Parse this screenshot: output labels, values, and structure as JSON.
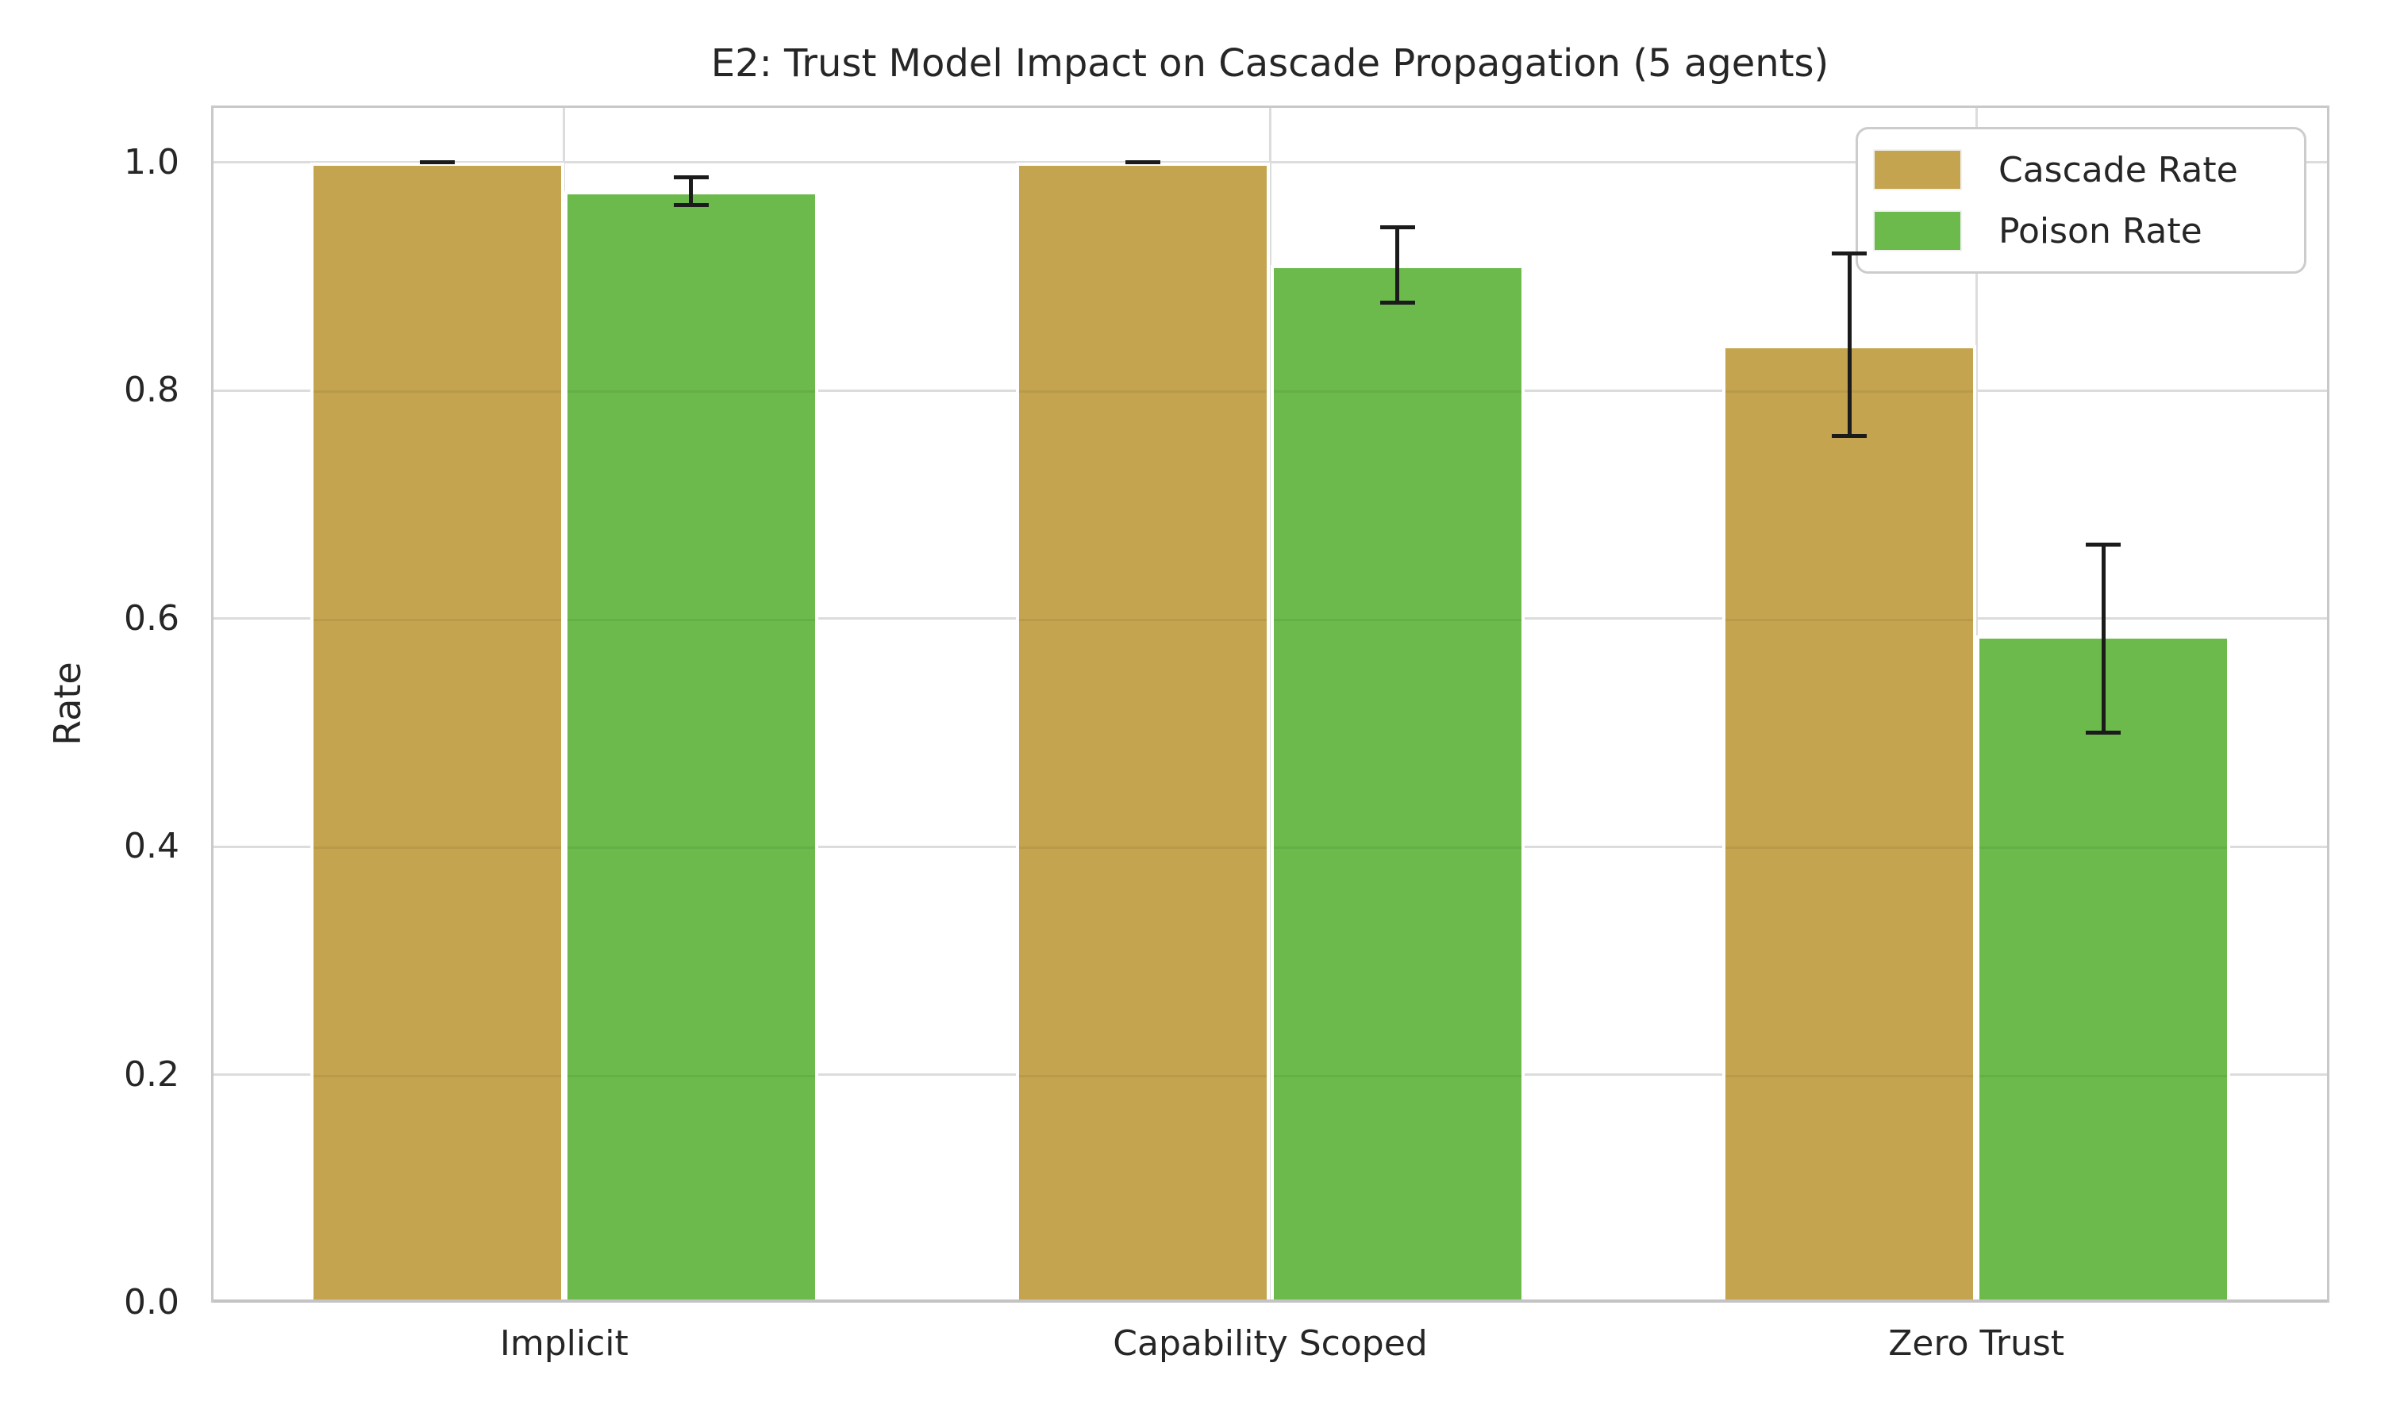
{
  "chart_data": {
    "type": "bar",
    "title": "E2: Trust Model Impact on Cascade Propagation (5 agents)",
    "xlabel": "",
    "ylabel": "Rate",
    "categories": [
      "Implicit",
      "Capability Scoped",
      "Zero Trust"
    ],
    "series": [
      {
        "name": "Cascade Rate",
        "color": "#C4A44F",
        "values": [
          1.0,
          1.0,
          0.84
        ],
        "err_low": [
          0.0,
          0.0,
          0.08
        ],
        "err_high": [
          0.0,
          0.0,
          0.08
        ]
      },
      {
        "name": "Poison Rate",
        "color": "#6CBA4C",
        "values": [
          0.975,
          0.91,
          0.585
        ],
        "err_low": [
          0.012,
          0.033,
          0.085
        ],
        "err_high": [
          0.012,
          0.033,
          0.08
        ]
      }
    ],
    "yticks": [
      0.0,
      0.2,
      0.4,
      0.6,
      0.8,
      1.0
    ],
    "ylim": [
      0,
      1.05
    ],
    "grid": true,
    "legend_position": "upper right",
    "error_bar_color": "#1b1b1b",
    "grid_color": "#dcdcdc",
    "spine_color": "#c9c9c9",
    "text_color": "#262626"
  }
}
